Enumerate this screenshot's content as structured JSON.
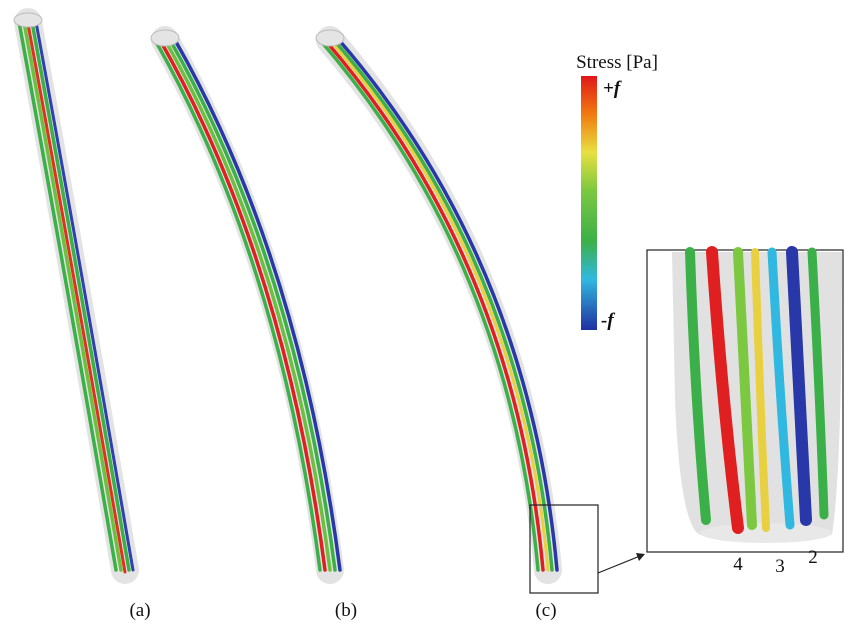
{
  "legend": {
    "title": "Stress [Pa]",
    "max_label": "+f",
    "min_label": "-f"
  },
  "panels": [
    {
      "label": "(a)"
    },
    {
      "label": "(b)"
    },
    {
      "label": "(c)"
    }
  ],
  "inset": {
    "labels": [
      "4",
      "3",
      "2"
    ]
  }
}
